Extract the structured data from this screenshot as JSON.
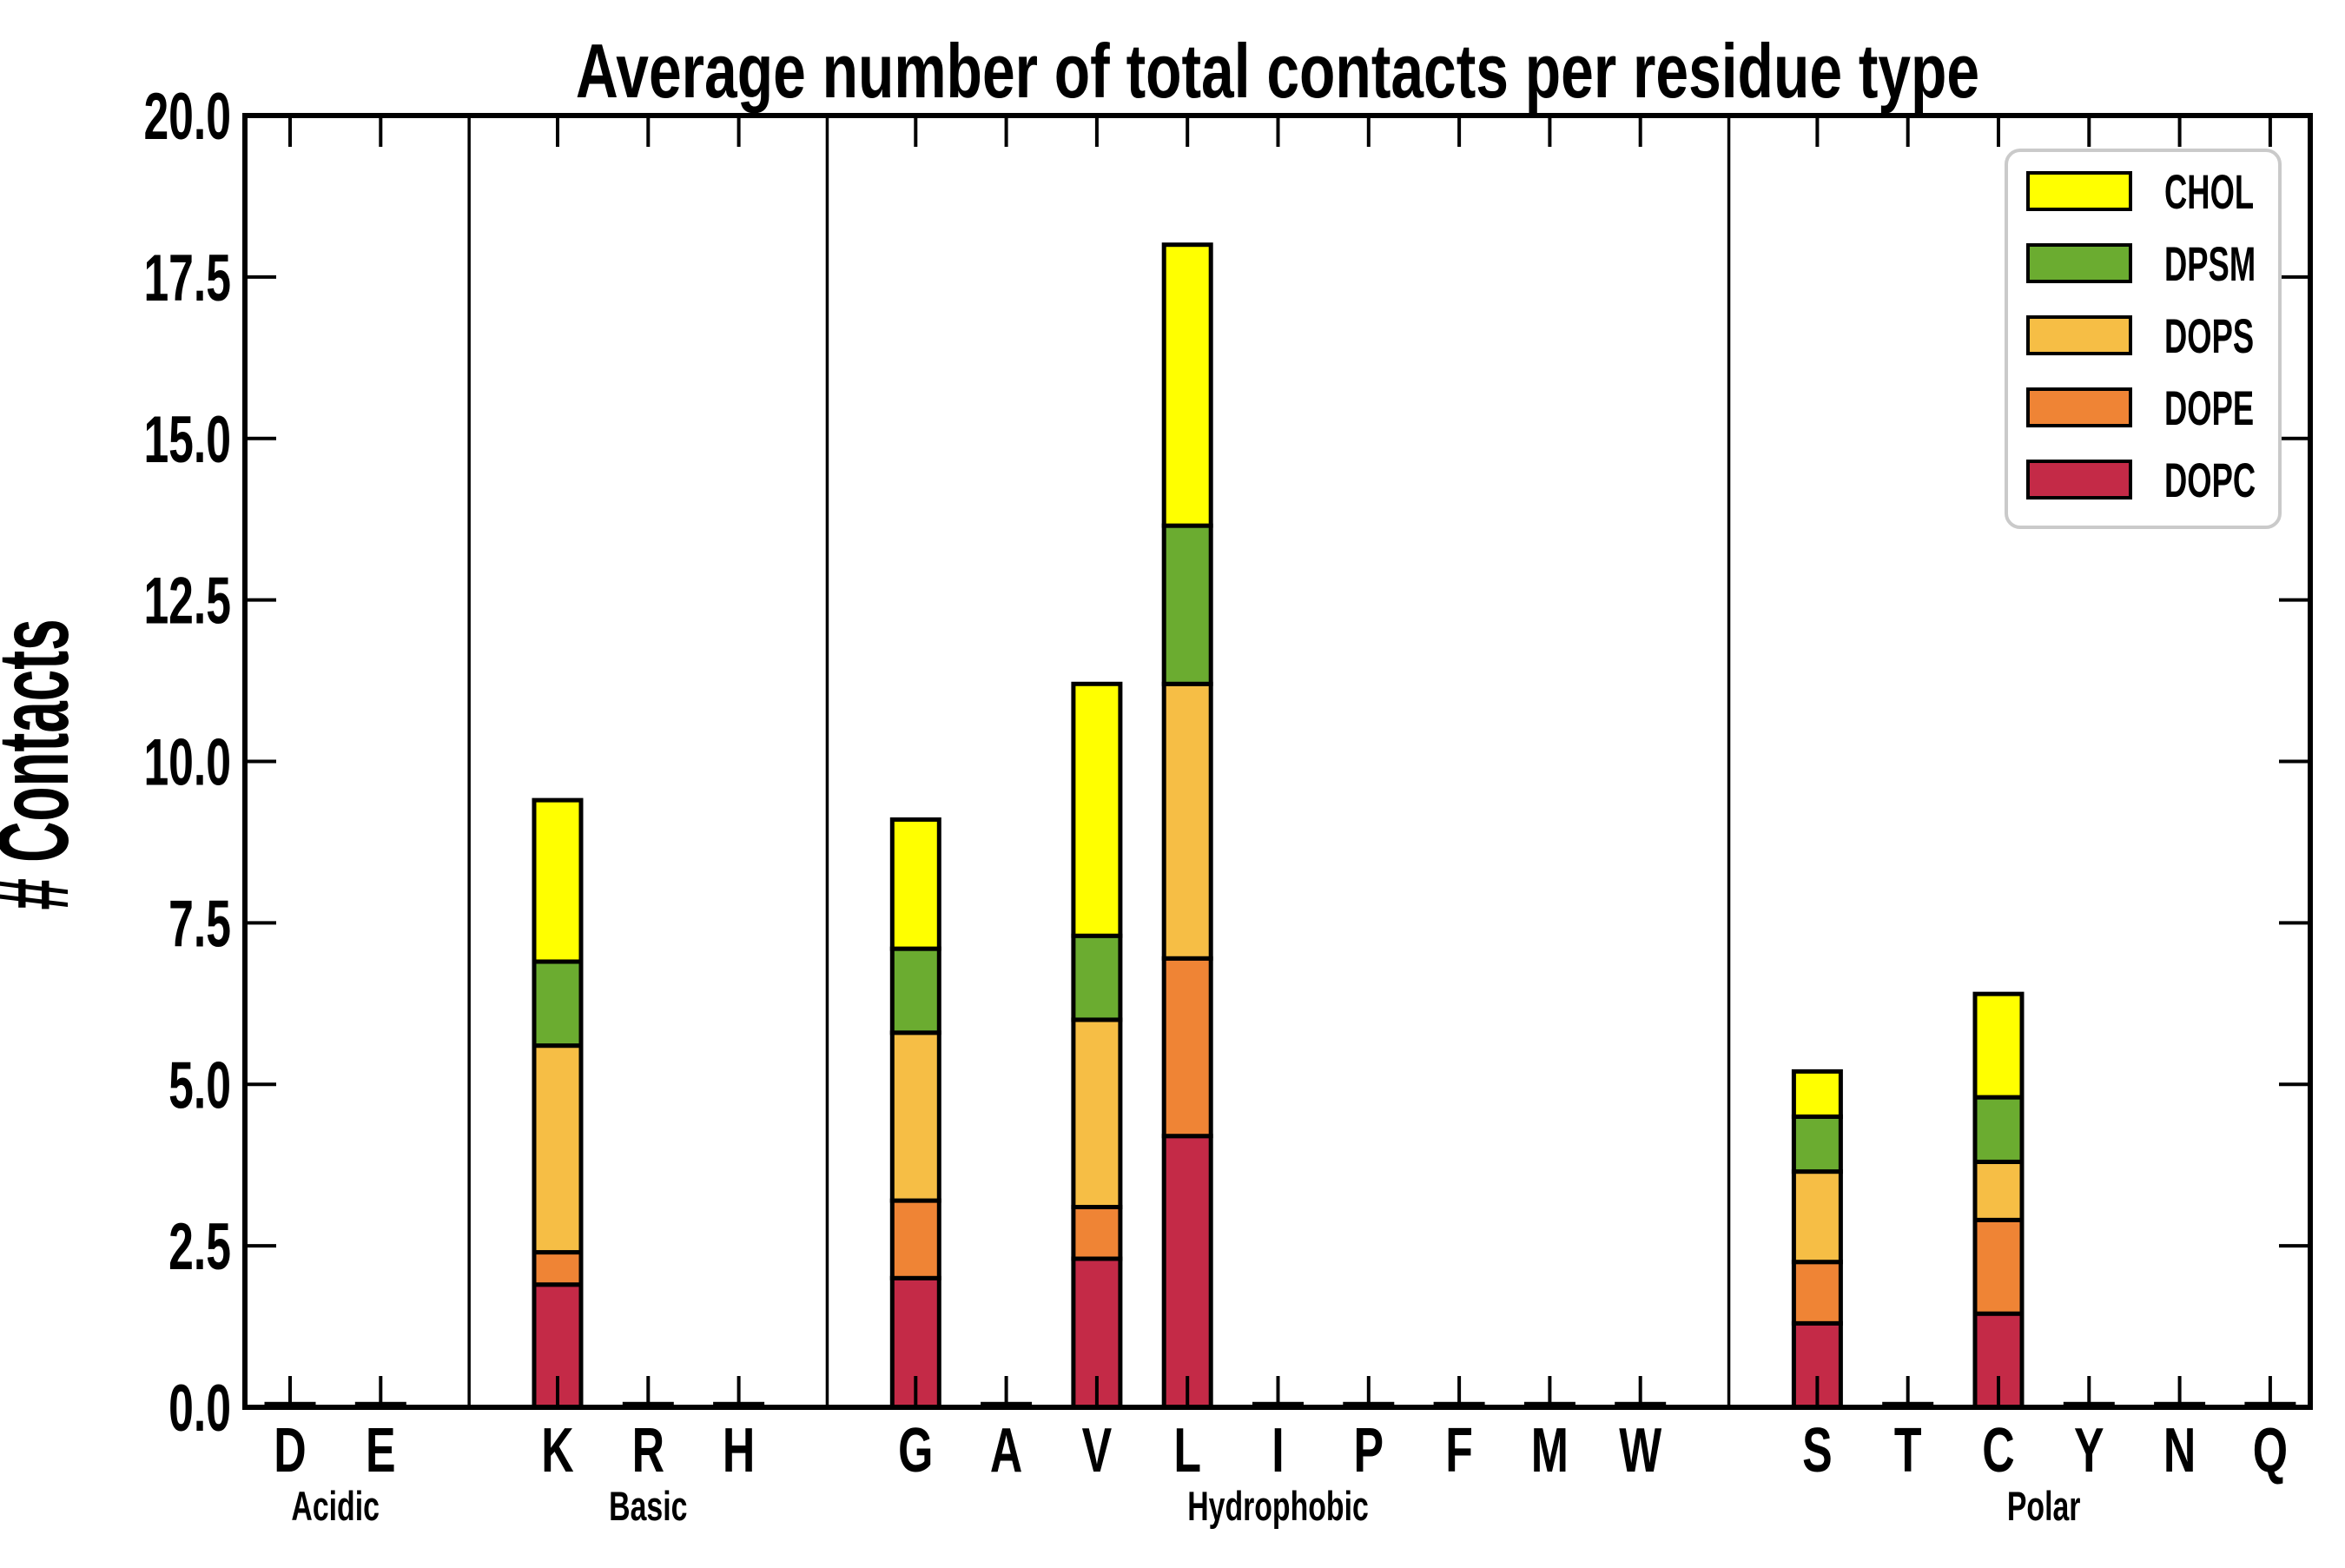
{
  "title": "Average number of total contacts per residue type",
  "y_axis": {
    "label": "# Contacts",
    "tick_labels": [
      "0.0",
      "2.5",
      "5.0",
      "7.5",
      "10.0",
      "12.5",
      "15.0",
      "17.5",
      "20.0"
    ],
    "min": 0,
    "max": 20
  },
  "legend": {
    "entries": [
      {
        "label": "CHOL",
        "color": "#FFFF00"
      },
      {
        "label": "DPSM",
        "color": "#6BAC30"
      },
      {
        "label": "DOPS",
        "color": "#F6BE45"
      },
      {
        "label": "DOPE",
        "color": "#EF8435"
      },
      {
        "label": "DOPC",
        "color": "#C42A47"
      }
    ]
  },
  "chart_data": {
    "type": "bar",
    "stacked": true,
    "title": "Average number of total contacts per residue type",
    "xlabel": "",
    "ylabel": "# Contacts",
    "ylim": [
      0,
      20
    ],
    "ytick_step": 2.5,
    "grid": false,
    "legend_position": "upper right",
    "legend_order": [
      "CHOL",
      "DPSM",
      "DOPS",
      "DOPE",
      "DOPC"
    ],
    "groups": [
      {
        "label": "Acidic",
        "residues": [
          "D",
          "E"
        ]
      },
      {
        "label": "Basic",
        "residues": [
          "K",
          "R",
          "H"
        ]
      },
      {
        "label": "Hydrophobic",
        "residues": [
          "G",
          "A",
          "V",
          "L",
          "I",
          "P",
          "F",
          "M",
          "W"
        ]
      },
      {
        "label": "Polar",
        "residues": [
          "S",
          "T",
          "C",
          "Y",
          "N",
          "Q"
        ]
      }
    ],
    "categories": [
      "D",
      "E",
      "K",
      "R",
      "H",
      "G",
      "A",
      "V",
      "L",
      "I",
      "P",
      "F",
      "M",
      "W",
      "S",
      "T",
      "C",
      "Y",
      "N",
      "Q"
    ],
    "series": [
      {
        "name": "DOPC",
        "color": "#C42A47",
        "values": [
          0.05,
          0.05,
          1.9,
          0.05,
          0.05,
          2.0,
          0.05,
          2.3,
          4.2,
          0.05,
          0.05,
          0.05,
          0.05,
          0.05,
          1.3,
          0.05,
          1.45,
          0.05,
          0.05,
          0.05
        ]
      },
      {
        "name": "DOPE",
        "color": "#EF8435",
        "values": [
          0,
          0,
          0.5,
          0,
          0,
          1.2,
          0,
          0.8,
          2.75,
          0,
          0,
          0,
          0,
          0,
          0.95,
          0,
          1.45,
          0,
          0,
          0
        ]
      },
      {
        "name": "DOPS",
        "color": "#F6BE45",
        "values": [
          0,
          0,
          3.2,
          0,
          0,
          2.6,
          0,
          2.9,
          4.25,
          0,
          0,
          0,
          0,
          0,
          1.4,
          0,
          0.9,
          0,
          0,
          0
        ]
      },
      {
        "name": "DPSM",
        "color": "#6BAC30",
        "values": [
          0,
          0,
          1.3,
          0,
          0,
          1.3,
          0,
          1.3,
          2.45,
          0,
          0,
          0,
          0,
          0,
          0.85,
          0,
          1.0,
          0,
          0,
          0
        ]
      },
      {
        "name": "CHOL",
        "color": "#FFFF00",
        "values": [
          0,
          0,
          2.5,
          0,
          0,
          2.0,
          0,
          3.9,
          4.35,
          0,
          0,
          0,
          0,
          0,
          0.7,
          0,
          1.6,
          0,
          0,
          0
        ]
      }
    ],
    "totals_note": {
      "K": 9.4,
      "G": 9.1,
      "V": 11.2,
      "L": 18.0,
      "S": 5.2,
      "C": 6.4
    }
  }
}
